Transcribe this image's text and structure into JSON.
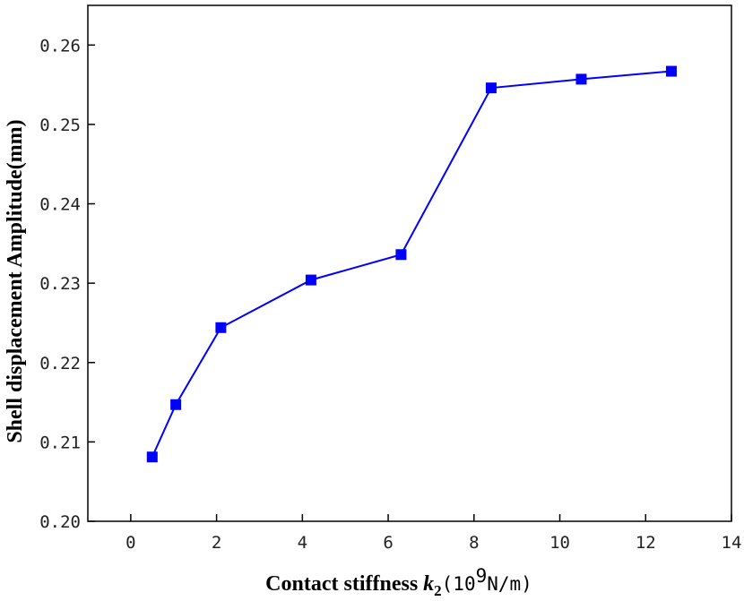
{
  "chart_data": {
    "type": "line",
    "x": [
      0.5,
      1.05,
      2.1,
      4.2,
      6.3,
      8.4,
      10.5,
      12.6
    ],
    "series": [
      {
        "values": [
          0.2081,
          0.2147,
          0.2244,
          0.2304,
          0.2336,
          0.2546,
          0.2557,
          0.2567
        ],
        "color": "#0000ff",
        "marker": "square"
      }
    ],
    "xlabel": {
      "text": "Contact stiffness ",
      "var": "k",
      "sub": "2",
      "unit_open": "(10",
      "unit_sup": "9",
      "unit_close": "N/m)"
    },
    "ylabel": "Shell displacement Amplitude(mm)",
    "xlim": [
      -1,
      14
    ],
    "ylim": [
      0.2,
      0.265
    ],
    "xticks": [
      "0",
      "2",
      "4",
      "6",
      "8",
      "10",
      "12",
      "14"
    ],
    "xtick_values": [
      0,
      2,
      4,
      6,
      8,
      10,
      12,
      14
    ],
    "yticks": [
      "0.20",
      "0.21",
      "0.22",
      "0.23",
      "0.24",
      "0.25",
      "0.26"
    ],
    "ytick_values": [
      0.2,
      0.21,
      0.22,
      0.23,
      0.24,
      0.25,
      0.26
    ],
    "grid": false,
    "legend": "none"
  }
}
